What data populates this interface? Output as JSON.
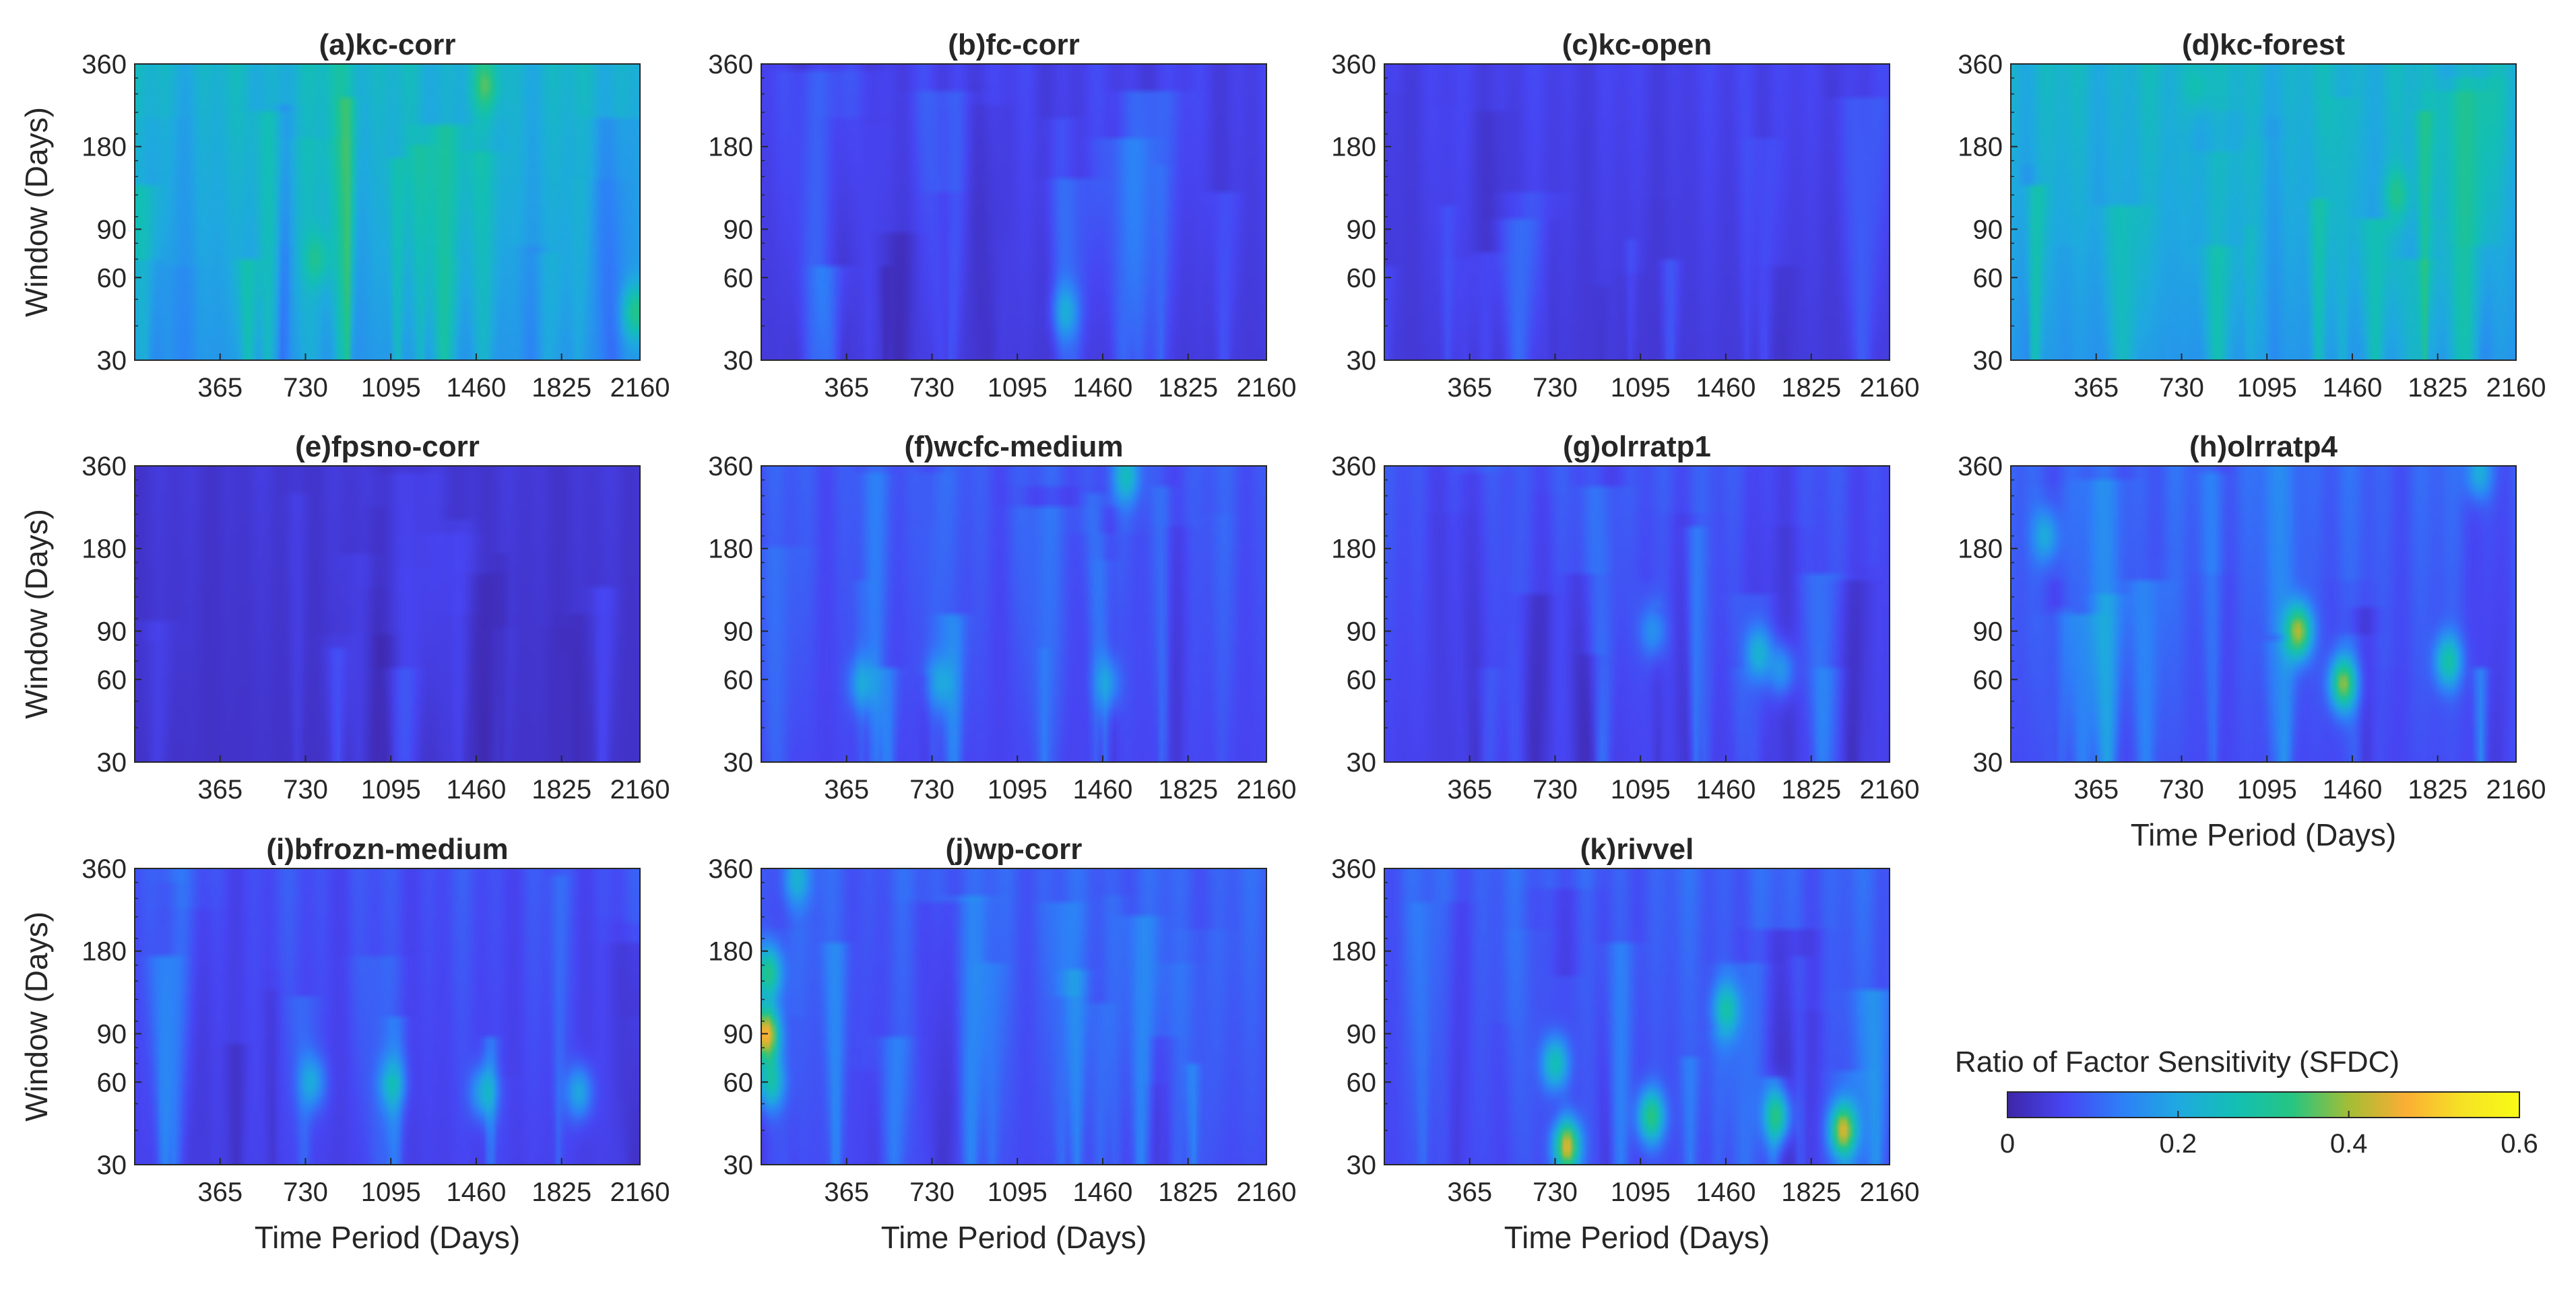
{
  "figure": {
    "colorbar": {
      "label": "Ratio of Factor Sensitivity (SFDC)",
      "ticks": [
        0,
        0.2,
        0.4,
        0.6
      ],
      "range": [
        0,
        0.6
      ],
      "colormap": [
        "#3e26a8",
        "#4745f3",
        "#2e7ff8",
        "#1fa9e0",
        "#13bfb5",
        "#25c582",
        "#a3bd35",
        "#fbae34",
        "#f5e225",
        "#f9fb15"
      ]
    }
  },
  "chart_data": [
    {
      "type": "heatmap",
      "title": "(a)kc-corr",
      "ylabel": "Window (Days)",
      "xlabel": "",
      "xticks": [
        "365",
        "730",
        "1095",
        "1460",
        "1825",
        "2160"
      ],
      "yticks": [
        "30",
        "60",
        "90",
        "180",
        "360"
      ],
      "xlim": [
        0,
        2160
      ],
      "ylim": [
        30,
        360
      ],
      "base": 0.23,
      "amp": 0.09,
      "seed": 1,
      "hotspots": [
        {
          "x": 2140,
          "y": 45,
          "v": 0.38
        },
        {
          "x": 1500,
          "y": 300,
          "v": 0.34
        },
        {
          "x": 780,
          "y": 70,
          "v": 0.32
        }
      ]
    },
    {
      "type": "heatmap",
      "title": "(b)fc-corr",
      "ylabel": "",
      "xlabel": "",
      "xticks": [
        "365",
        "730",
        "1095",
        "1460",
        "1825",
        "2160"
      ],
      "yticks": [
        "30",
        "60",
        "90",
        "180",
        "360"
      ],
      "xlim": [
        0,
        2160
      ],
      "ylim": [
        30,
        360
      ],
      "base": 0.06,
      "amp": 0.05,
      "seed": 2,
      "hotspots": [
        {
          "x": 1300,
          "y": 45,
          "v": 0.17
        }
      ]
    },
    {
      "type": "heatmap",
      "title": "(c)kc-open",
      "ylabel": "",
      "xlabel": "",
      "xticks": [
        "365",
        "730",
        "1095",
        "1460",
        "1825",
        "2160"
      ],
      "yticks": [
        "30",
        "60",
        "90",
        "180",
        "360"
      ],
      "xlim": [
        0,
        2160
      ],
      "ylim": [
        30,
        360
      ],
      "base": 0.06,
      "amp": 0.04,
      "seed": 3,
      "hotspots": []
    },
    {
      "type": "heatmap",
      "title": "(d)kc-forest",
      "ylabel": "",
      "xlabel": "",
      "xticks": [
        "365",
        "730",
        "1095",
        "1460",
        "1825",
        "2160"
      ],
      "yticks": [
        "30",
        "60",
        "90",
        "180",
        "360"
      ],
      "xlim": [
        0,
        2160
      ],
      "ylim": [
        30,
        360
      ],
      "base": 0.23,
      "amp": 0.09,
      "seed": 4,
      "hotspots": [
        {
          "x": 1650,
          "y": 120,
          "v": 0.33
        },
        {
          "x": 800,
          "y": 300,
          "v": 0.3
        }
      ]
    },
    {
      "type": "heatmap",
      "title": "(e)fpsno-corr",
      "ylabel": "Window (Days)",
      "xlabel": "",
      "xticks": [
        "365",
        "730",
        "1095",
        "1460",
        "1825",
        "2160"
      ],
      "yticks": [
        "30",
        "60",
        "90",
        "180",
        "360"
      ],
      "xlim": [
        0,
        2160
      ],
      "ylim": [
        30,
        360
      ],
      "base": 0.04,
      "amp": 0.03,
      "seed": 5,
      "hotspots": []
    },
    {
      "type": "heatmap",
      "title": "(f)wcfc-medium",
      "ylabel": "",
      "xlabel": "",
      "xticks": [
        "365",
        "730",
        "1095",
        "1460",
        "1825",
        "2160"
      ],
      "yticks": [
        "30",
        "60",
        "90",
        "180",
        "360"
      ],
      "xlim": [
        0,
        2160
      ],
      "ylim": [
        30,
        360
      ],
      "base": 0.09,
      "amp": 0.06,
      "seed": 6,
      "hotspots": [
        {
          "x": 1560,
          "y": 330,
          "v": 0.24
        },
        {
          "x": 430,
          "y": 58,
          "v": 0.2
        },
        {
          "x": 760,
          "y": 58,
          "v": 0.19
        },
        {
          "x": 1480,
          "y": 58,
          "v": 0.19
        }
      ]
    },
    {
      "type": "heatmap",
      "title": "(g)olrratp1",
      "ylabel": "",
      "xlabel": "",
      "xticks": [
        "365",
        "730",
        "1095",
        "1460",
        "1825",
        "2160"
      ],
      "yticks": [
        "30",
        "60",
        "90",
        "180",
        "360"
      ],
      "xlim": [
        0,
        2160
      ],
      "ylim": [
        30,
        360
      ],
      "base": 0.08,
      "amp": 0.06,
      "seed": 7,
      "hotspots": [
        {
          "x": 1600,
          "y": 75,
          "v": 0.22
        },
        {
          "x": 1700,
          "y": 65,
          "v": 0.2
        },
        {
          "x": 1150,
          "y": 90,
          "v": 0.18
        }
      ]
    },
    {
      "type": "heatmap",
      "title": "(h)olrratp4",
      "ylabel": "",
      "xlabel": "Time Period (Days)",
      "xticks": [
        "365",
        "730",
        "1095",
        "1460",
        "1825",
        "2160"
      ],
      "yticks": [
        "30",
        "60",
        "90",
        "180",
        "360"
      ],
      "xlim": [
        0,
        2160
      ],
      "ylim": [
        30,
        360
      ],
      "base": 0.1,
      "amp": 0.07,
      "seed": 8,
      "hotspots": [
        {
          "x": 1230,
          "y": 90,
          "v": 0.42
        },
        {
          "x": 1420,
          "y": 58,
          "v": 0.4
        },
        {
          "x": 1870,
          "y": 70,
          "v": 0.3
        },
        {
          "x": 150,
          "y": 200,
          "v": 0.22
        },
        {
          "x": 2000,
          "y": 340,
          "v": 0.24
        }
      ]
    },
    {
      "type": "heatmap",
      "title": "(i)bfrozn-medium",
      "ylabel": "Window (Days)",
      "xlabel": "Time Period (Days)",
      "xticks": [
        "365",
        "730",
        "1095",
        "1460",
        "1825",
        "2160"
      ],
      "yticks": [
        "30",
        "60",
        "90",
        "180",
        "360"
      ],
      "xlim": [
        0,
        2160
      ],
      "ylim": [
        30,
        360
      ],
      "base": 0.08,
      "amp": 0.06,
      "seed": 9,
      "hotspots": [
        {
          "x": 1490,
          "y": 55,
          "v": 0.22
        },
        {
          "x": 1900,
          "y": 55,
          "v": 0.22
        },
        {
          "x": 1100,
          "y": 60,
          "v": 0.2
        },
        {
          "x": 760,
          "y": 60,
          "v": 0.2
        }
      ]
    },
    {
      "type": "heatmap",
      "title": "(j)wp-corr",
      "ylabel": "",
      "xlabel": "Time Period (Days)",
      "xticks": [
        "365",
        "730",
        "1095",
        "1460",
        "1825",
        "2160"
      ],
      "yticks": [
        "30",
        "60",
        "90",
        "180",
        "360"
      ],
      "xlim": [
        0,
        2160
      ],
      "ylim": [
        30,
        360
      ],
      "base": 0.1,
      "amp": 0.06,
      "seed": 10,
      "hotspots": [
        {
          "x": 20,
          "y": 90,
          "v": 0.5
        },
        {
          "x": 30,
          "y": 150,
          "v": 0.34
        },
        {
          "x": 40,
          "y": 60,
          "v": 0.3
        },
        {
          "x": 150,
          "y": 330,
          "v": 0.22
        }
      ]
    },
    {
      "type": "heatmap",
      "title": "(k)rivvel",
      "ylabel": "",
      "xlabel": "Time Period (Days)",
      "xticks": [
        "365",
        "730",
        "1095",
        "1460",
        "1825",
        "2160"
      ],
      "yticks": [
        "30",
        "60",
        "90",
        "180",
        "360"
      ],
      "xlim": [
        0,
        2160
      ],
      "ylim": [
        30,
        360
      ],
      "base": 0.1,
      "amp": 0.07,
      "seed": 11,
      "hotspots": [
        {
          "x": 780,
          "y": 35,
          "v": 0.48
        },
        {
          "x": 1960,
          "y": 40,
          "v": 0.44
        },
        {
          "x": 1140,
          "y": 45,
          "v": 0.36
        },
        {
          "x": 1680,
          "y": 45,
          "v": 0.34
        },
        {
          "x": 1460,
          "y": 110,
          "v": 0.28
        },
        {
          "x": 730,
          "y": 70,
          "v": 0.3
        }
      ]
    }
  ]
}
